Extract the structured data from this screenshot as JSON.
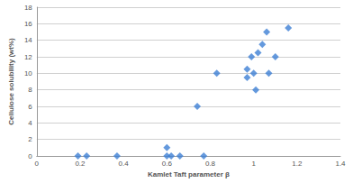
{
  "chart_data": {
    "type": "scatter",
    "x_label": "Kamlet Taft parameter β",
    "y_label": "Cellulose solubility (wt%)",
    "x": [
      0.19,
      0.23,
      0.37,
      0.6,
      0.6,
      0.62,
      0.66,
      0.77,
      0.74,
      0.83,
      0.97,
      0.97,
      0.99,
      1.0,
      1.01,
      1.02,
      1.04,
      1.06,
      1.07,
      1.1,
      1.16
    ],
    "values": [
      0,
      0,
      0,
      0,
      1,
      0,
      0,
      0,
      6,
      10,
      10.5,
      9.5,
      12,
      10,
      8,
      12.5,
      13.5,
      15,
      10,
      12,
      15.5
    ],
    "color": "#3d7fd4",
    "marker": "diamond",
    "xlim": [
      0,
      1.4
    ],
    "xticks": [
      0,
      0.2,
      0.4,
      0.6,
      0.8,
      1,
      1.2,
      1.4
    ],
    "ylim": [
      0,
      18
    ],
    "yticks": [
      0,
      2,
      4,
      6,
      8,
      10,
      12,
      14,
      16,
      18
    ],
    "grid": true
  }
}
